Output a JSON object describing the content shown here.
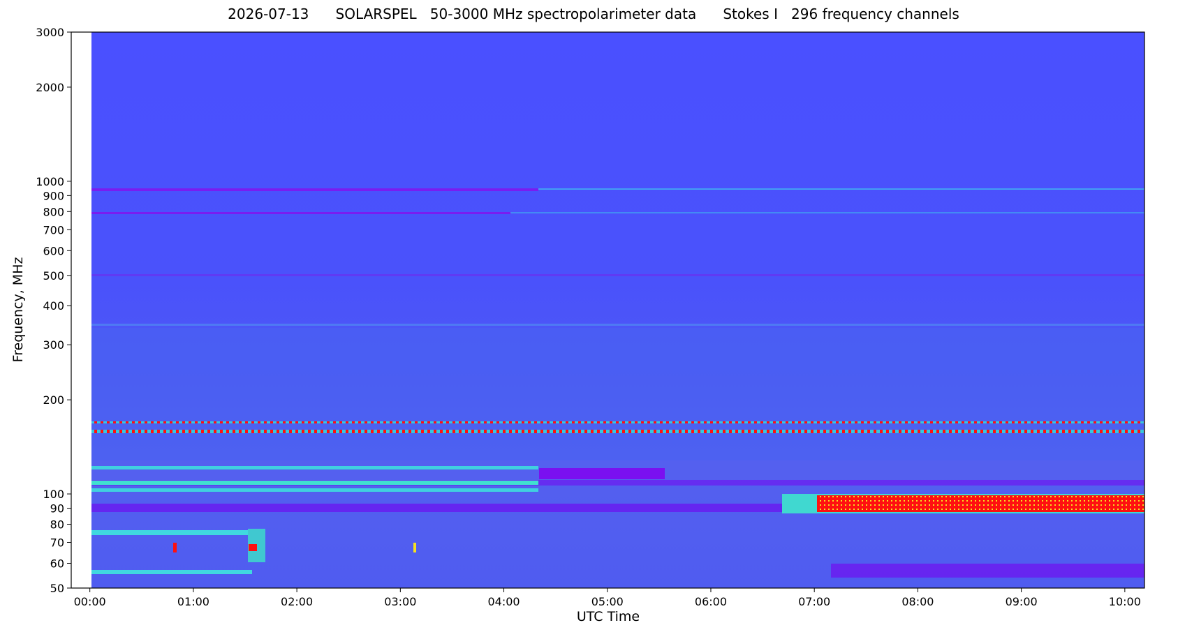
{
  "chart_data": {
    "type": "heatmap",
    "title": "2026-07-13      SOLARSPEL   50-3000 MHz spectropolarimeter data      Stokes I   296 frequency channels",
    "x_label": "UTC Time",
    "y_label": "Frequency, MHz",
    "xlim": [
      -0.18,
      10.19
    ],
    "xticks": [
      {
        "value": 0,
        "label": "00:00"
      },
      {
        "value": 1,
        "label": "01:00"
      },
      {
        "value": 2,
        "label": "02:00"
      },
      {
        "value": 3,
        "label": "03:00"
      },
      {
        "value": 4,
        "label": "04:00"
      },
      {
        "value": 5,
        "label": "05:00"
      },
      {
        "value": 6,
        "label": "06:00"
      },
      {
        "value": 7,
        "label": "07:00"
      },
      {
        "value": 8,
        "label": "08:00"
      },
      {
        "value": 9,
        "label": "09:00"
      },
      {
        "value": 10,
        "label": "10:00"
      }
    ],
    "ylim": [
      50,
      3000
    ],
    "yticks": [
      50,
      60,
      70,
      80,
      90,
      100,
      200,
      300,
      400,
      500,
      600,
      700,
      800,
      900,
      1000,
      2000,
      3000
    ],
    "y_scale": "log"
  }
}
